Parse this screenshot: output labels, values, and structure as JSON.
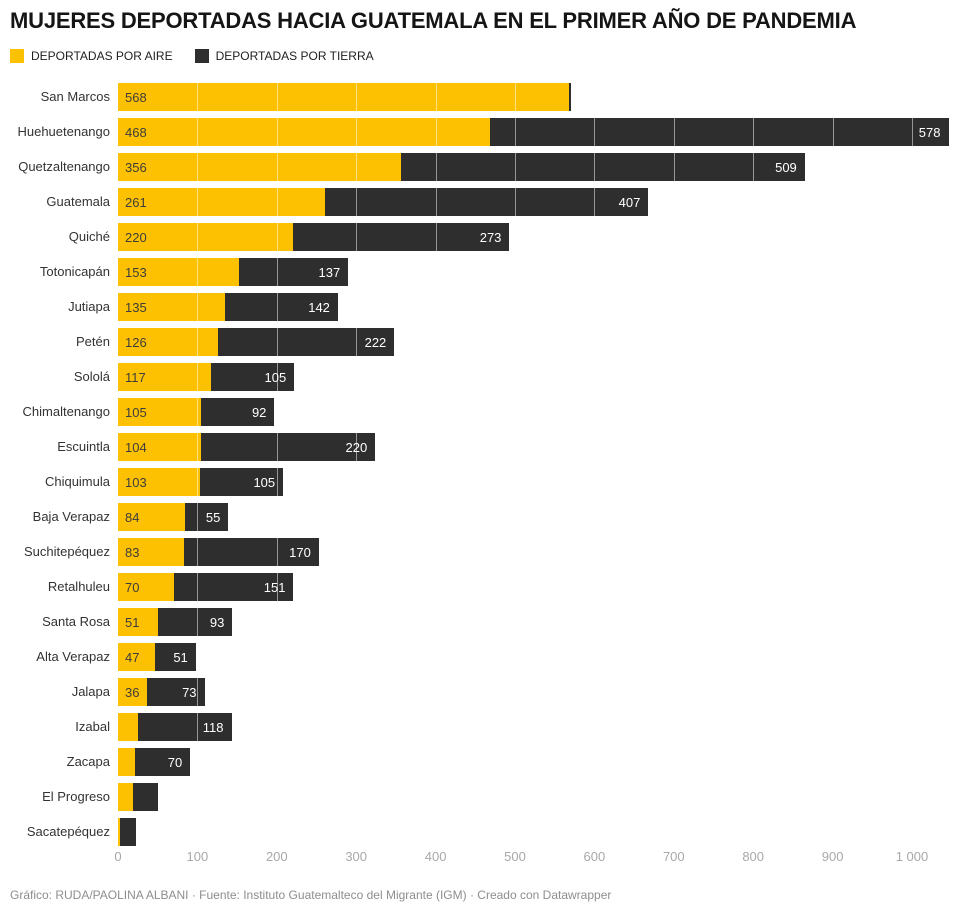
{
  "header": {
    "title": "MUJERES DEPORTADAS HACIA GUATEMALA EN EL PRIMER AÑO DE PANDEMIA"
  },
  "legend": {
    "items": [
      {
        "id": "aire",
        "label": "DEPORTADAS POR AIRE",
        "color": "#fec101"
      },
      {
        "id": "tierra",
        "label": "DEPORTADAS POR TIERRA",
        "color": "#2e2e2e"
      }
    ]
  },
  "chart_data": {
    "type": "bar",
    "orientation": "horizontal",
    "stacked": true,
    "title": "MUJERES DEPORTADAS HACIA GUATEMALA EN EL PRIMER AÑO DE PANDEMIA",
    "categories": [
      "San Marcos",
      "Huehuetenango",
      "Quetzaltenango",
      "Guatemala",
      "Quiché",
      "Totonicapán",
      "Jutiapa",
      "Petén",
      "Sololá",
      "Chimaltenango",
      "Escuintla",
      "Chiquimula",
      "Baja Verapaz",
      "Suchitepéquez",
      "Retalhuleu",
      "Santa Rosa",
      "Alta Verapaz",
      "Jalapa",
      "Izabal",
      "Zacapa",
      "El Progreso",
      "Sacatepéquez"
    ],
    "series": [
      {
        "name": "DEPORTADAS POR AIRE",
        "color": "#fec101",
        "values": [
          568,
          468,
          356,
          261,
          220,
          153,
          135,
          126,
          117,
          105,
          104,
          103,
          84,
          83,
          70,
          51,
          47,
          36,
          25,
          21,
          19,
          3
        ],
        "labels": [
          "568",
          "468",
          "356",
          "261",
          "220",
          "153",
          "135",
          "126",
          "117",
          "105",
          "104",
          "103",
          "84",
          "83",
          "70",
          "51",
          "47",
          "36",
          "",
          "",
          "",
          ""
        ]
      },
      {
        "name": "DEPORTADAS POR TIERRA",
        "color": "#2e2e2e",
        "values": [
          3,
          578,
          509,
          407,
          273,
          137,
          142,
          222,
          105,
          92,
          220,
          105,
          55,
          170,
          151,
          93,
          51,
          73,
          118,
          70,
          31,
          20
        ],
        "labels": [
          "",
          "578",
          "509",
          "407",
          "273",
          "137",
          "142",
          "222",
          "105",
          "92",
          "220",
          "105",
          "55",
          "170",
          "151",
          "93",
          "51",
          "73",
          "118",
          "70",
          "",
          ""
        ]
      }
    ],
    "x_axis": {
      "ticks": [
        0,
        100,
        200,
        300,
        400,
        500,
        600,
        700,
        800,
        900,
        1000
      ],
      "tick_labels": [
        "0",
        "100",
        "200",
        "300",
        "400",
        "500",
        "600",
        "700",
        "800",
        "900",
        "1 000"
      ],
      "range": [
        0,
        1050
      ],
      "gridlines": true,
      "gridline_color": "rgba(255,255,255,0.5)"
    },
    "legend_position": "top"
  },
  "footer": {
    "credit": "Gráfico: RUDA/PAOLINA ALBANI · Fuente: Instituto Guatemalteco del Migrante (IGM) · Creado con Datawrapper"
  }
}
